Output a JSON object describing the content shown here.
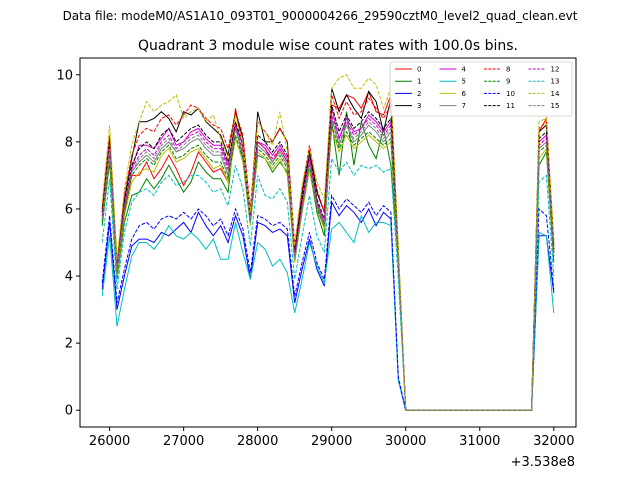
{
  "chart_data": {
    "type": "line",
    "suptitle": "Data file: modeM0/AS1A10_093T01_9000004266_29590cztM0_level2_quad_clean.evt",
    "title": "Quadrant 3 module wise count rates with 100.0s bins.",
    "xlabel": "",
    "ylabel": "",
    "offset_label": "+3.538e8",
    "xlim": [
      25600,
      32300
    ],
    "ylim": [
      -0.5,
      10.5
    ],
    "xticks": [
      26000,
      27000,
      28000,
      29000,
      30000,
      31000,
      32000
    ],
    "xtick_labels": [
      "26000",
      "27000",
      "28000",
      "29000",
      "30000",
      "31000",
      "32000"
    ],
    "yticks": [
      0,
      2,
      4,
      6,
      8,
      10
    ],
    "ytick_labels": [
      "0",
      "2",
      "4",
      "6",
      "8",
      "10"
    ],
    "legend_location": "top-right",
    "x": [
      25900,
      26000,
      26100,
      26200,
      26300,
      26400,
      26500,
      26600,
      26700,
      26800,
      26900,
      27000,
      27100,
      27200,
      27300,
      27400,
      27500,
      27600,
      27700,
      27800,
      27900,
      28000,
      28100,
      28200,
      28300,
      28400,
      28500,
      28600,
      28700,
      28800,
      28900,
      29000,
      29100,
      29200,
      29300,
      29400,
      29500,
      29600,
      29700,
      29800,
      29900,
      30000,
      30100,
      30200,
      30300,
      30400,
      30500,
      30600,
      30700,
      30800,
      30900,
      31000,
      31100,
      31200,
      31300,
      31400,
      31500,
      31600,
      31700,
      31800,
      31900,
      32000
    ],
    "series": [
      {
        "name": "0",
        "color": "#ff0000",
        "dash": "solid",
        "values": [
          5.9,
          7.8,
          4.0,
          5.9,
          7.0,
          7.0,
          7.4,
          6.9,
          7.2,
          7.6,
          7.2,
          6.7,
          7.1,
          7.7,
          7.4,
          7.1,
          7.2,
          6.8,
          9.0,
          7.8,
          5.8,
          8.0,
          7.8,
          7.4,
          7.8,
          7.4,
          4.7,
          6.2,
          7.5,
          6.2,
          5.4,
          9.1,
          9.0,
          9.4,
          9.3,
          9.0,
          9.5,
          8.9,
          8.8,
          9.4,
          4.7,
          0,
          0,
          0,
          0,
          0,
          0,
          0,
          0,
          0,
          0,
          0,
          0,
          0,
          0,
          0,
          0,
          0,
          0,
          8.3,
          8.7,
          4.7
        ]
      },
      {
        "name": "1",
        "color": "#008000",
        "dash": "solid",
        "values": [
          5.5,
          7.4,
          3.9,
          5.6,
          6.4,
          6.5,
          6.9,
          6.6,
          6.9,
          7.3,
          6.9,
          6.5,
          6.8,
          7.4,
          7.1,
          6.9,
          6.9,
          6.5,
          8.5,
          7.5,
          5.6,
          7.6,
          7.5,
          7.1,
          7.4,
          7.1,
          4.5,
          5.9,
          7.2,
          5.9,
          5.2,
          8.6,
          7.0,
          8.9,
          7.3,
          8.6,
          7.9,
          7.5,
          8.4,
          7.3,
          4.4,
          0,
          0,
          0,
          0,
          0,
          0,
          0,
          0,
          0,
          0,
          0,
          0,
          0,
          0,
          0,
          0,
          0,
          0,
          7.3,
          7.7,
          4.4
        ]
      },
      {
        "name": "2",
        "color": "#0000ff",
        "dash": "solid",
        "values": [
          3.6,
          5.6,
          3.0,
          4.0,
          4.9,
          5.1,
          5.1,
          5.0,
          5.3,
          5.2,
          5.4,
          5.6,
          5.3,
          5.9,
          5.5,
          5.2,
          5.5,
          5.0,
          5.8,
          5.2,
          3.9,
          5.6,
          5.5,
          5.3,
          5.4,
          5.2,
          3.2,
          4.2,
          5.1,
          4.2,
          3.7,
          6.2,
          5.8,
          6.1,
          5.9,
          5.6,
          6.0,
          5.5,
          5.9,
          5.7,
          0.9,
          0,
          0,
          0,
          0,
          0,
          0,
          0,
          0,
          0,
          0,
          0,
          0,
          0,
          0,
          0,
          0,
          0,
          0,
          5.2,
          5.2,
          3.5
        ]
      },
      {
        "name": "3",
        "color": "#000000",
        "dash": "solid",
        "values": [
          6.0,
          8.1,
          4.3,
          6.3,
          7.5,
          8.6,
          8.6,
          8.7,
          8.9,
          8.7,
          8.3,
          8.9,
          8.8,
          9.0,
          8.6,
          8.4,
          8.2,
          7.6,
          8.9,
          8.1,
          5.8,
          8.9,
          8.0,
          8.0,
          8.4,
          8.0,
          4.8,
          6.5,
          7.8,
          6.5,
          5.9,
          9.6,
          8.9,
          9.4,
          9.0,
          8.7,
          9.5,
          9.2,
          8.3,
          9.3,
          4.7,
          0,
          0,
          0,
          0,
          0,
          0,
          0,
          0,
          0,
          0,
          0,
          0,
          0,
          0,
          0,
          0,
          0,
          0,
          8.3,
          8.5,
          4.9
        ]
      },
      {
        "name": "4",
        "color": "#cc00cc",
        "dash": "solid",
        "values": [
          5.7,
          7.8,
          4.1,
          6.0,
          7.2,
          7.9,
          7.9,
          7.8,
          8.1,
          8.4,
          7.9,
          8.0,
          8.3,
          8.4,
          8.1,
          7.9,
          7.9,
          7.3,
          8.5,
          7.9,
          5.7,
          8.0,
          7.9,
          7.6,
          7.9,
          7.5,
          4.6,
          6.2,
          7.6,
          6.2,
          5.6,
          9.0,
          8.1,
          8.7,
          8.3,
          8.4,
          8.8,
          8.6,
          8.3,
          8.6,
          4.6,
          0,
          0,
          0,
          0,
          0,
          0,
          0,
          0,
          0,
          0,
          0,
          0,
          0,
          0,
          0,
          0,
          0,
          0,
          8.0,
          8.2,
          4.8
        ]
      },
      {
        "name": "5",
        "color": "#00bfbf",
        "dash": "solid",
        "values": [
          3.4,
          5.2,
          2.5,
          3.6,
          4.6,
          5.0,
          5.0,
          4.8,
          5.1,
          5.5,
          5.2,
          5.1,
          5.3,
          5.1,
          4.8,
          5.1,
          4.5,
          4.5,
          5.6,
          4.7,
          3.9,
          5.0,
          4.8,
          4.3,
          4.5,
          4.1,
          2.9,
          3.9,
          5.0,
          4.3,
          3.8,
          5.4,
          5.6,
          5.3,
          5.0,
          5.8,
          5.3,
          5.6,
          5.6,
          5.5,
          0.9,
          0,
          0,
          0,
          0,
          0,
          0,
          0,
          0,
          0,
          0,
          0,
          0,
          0,
          0,
          0,
          0,
          0,
          0,
          5.3,
          5.2,
          2.9
        ]
      },
      {
        "name": "6",
        "color": "#bfbf00",
        "dash": "solid",
        "values": [
          5.6,
          7.6,
          4.0,
          5.8,
          6.8,
          7.1,
          7.2,
          7.1,
          7.6,
          7.8,
          7.4,
          7.5,
          7.7,
          7.8,
          7.5,
          7.2,
          7.3,
          6.8,
          8.1,
          7.4,
          5.5,
          7.7,
          7.5,
          7.2,
          7.5,
          7.0,
          4.4,
          5.9,
          7.2,
          6.0,
          5.4,
          8.4,
          7.7,
          8.2,
          7.8,
          8.0,
          8.2,
          8.0,
          7.8,
          8.0,
          4.3,
          0,
          0,
          0,
          0,
          0,
          0,
          0,
          0,
          0,
          0,
          0,
          0,
          0,
          0,
          0,
          0,
          0,
          0,
          7.5,
          7.8,
          4.6
        ]
      },
      {
        "name": "7",
        "color": "#808080",
        "dash": "solid",
        "values": [
          5.8,
          7.9,
          4.2,
          6.1,
          7.1,
          7.4,
          7.6,
          7.4,
          7.8,
          8.0,
          7.7,
          7.8,
          8.0,
          8.1,
          7.8,
          7.6,
          7.6,
          7.0,
          8.4,
          7.6,
          5.6,
          7.9,
          7.7,
          7.4,
          7.7,
          7.3,
          4.5,
          6.0,
          7.4,
          6.1,
          5.5,
          8.7,
          7.9,
          8.5,
          8.0,
          8.2,
          8.5,
          8.3,
          8.0,
          8.3,
          4.5,
          0,
          0,
          0,
          0,
          0,
          0,
          0,
          0,
          0,
          0,
          0,
          0,
          0,
          0,
          0,
          0,
          0,
          0,
          7.8,
          8.0,
          4.7
        ]
      },
      {
        "name": "8",
        "color": "#ff0000",
        "dash": "dashed",
        "values": [
          6.0,
          8.2,
          4.4,
          6.4,
          7.6,
          8.2,
          8.4,
          8.3,
          8.7,
          8.8,
          8.5,
          8.8,
          9.1,
          9.0,
          8.7,
          8.5,
          8.4,
          7.8,
          8.9,
          8.2,
          6.0,
          8.6,
          8.3,
          8.0,
          8.4,
          8.0,
          4.9,
          6.6,
          7.9,
          6.6,
          5.9,
          9.4,
          8.7,
          9.2,
          8.8,
          8.9,
          9.3,
          9.0,
          8.7,
          9.1,
          4.8,
          0,
          0,
          0,
          0,
          0,
          0,
          0,
          0,
          0,
          0,
          0,
          0,
          0,
          0,
          0,
          0,
          0,
          0,
          8.4,
          8.6,
          5.0
        ]
      },
      {
        "name": "9",
        "color": "#008000",
        "dash": "dashed",
        "values": [
          5.6,
          7.7,
          4.1,
          5.9,
          7.0,
          7.3,
          7.5,
          7.3,
          7.7,
          7.9,
          7.5,
          7.6,
          7.8,
          7.9,
          7.6,
          7.4,
          7.4,
          6.9,
          8.2,
          7.5,
          5.6,
          7.8,
          7.6,
          7.3,
          7.6,
          7.2,
          4.5,
          6.0,
          7.3,
          6.0,
          5.5,
          8.5,
          7.8,
          8.3,
          7.9,
          8.1,
          8.3,
          8.1,
          7.9,
          8.1,
          4.4,
          0,
          0,
          0,
          0,
          0,
          0,
          0,
          0,
          0,
          0,
          0,
          0,
          0,
          0,
          0,
          0,
          0,
          0,
          7.7,
          7.9,
          4.6
        ]
      },
      {
        "name": "10",
        "color": "#0000ff",
        "dash": "dashed",
        "values": [
          3.8,
          5.8,
          3.2,
          4.2,
          5.1,
          5.5,
          5.6,
          5.4,
          5.7,
          5.8,
          5.7,
          5.9,
          5.7,
          6.0,
          5.8,
          5.5,
          5.7,
          5.2,
          6.0,
          5.4,
          4.1,
          5.8,
          5.7,
          5.5,
          5.6,
          5.4,
          3.4,
          4.4,
          5.3,
          4.4,
          3.9,
          6.4,
          6.0,
          6.3,
          6.1,
          5.9,
          6.2,
          5.8,
          6.1,
          5.9,
          1.0,
          0,
          0,
          0,
          0,
          0,
          0,
          0,
          0,
          0,
          0,
          0,
          0,
          0,
          0,
          0,
          0,
          0,
          0,
          6.0,
          5.8,
          3.6
        ]
      },
      {
        "name": "11",
        "color": "#000000",
        "dash": "dashed",
        "values": [
          5.9,
          8.0,
          4.3,
          6.2,
          7.3,
          7.8,
          8.0,
          7.8,
          8.2,
          8.4,
          8.0,
          8.2,
          8.4,
          8.5,
          8.2,
          8.0,
          8.0,
          7.4,
          8.6,
          7.9,
          5.8,
          8.2,
          8.0,
          7.7,
          8.0,
          7.6,
          4.7,
          6.3,
          7.7,
          6.3,
          5.7,
          9.1,
          8.3,
          8.8,
          8.4,
          8.6,
          8.9,
          8.7,
          8.4,
          8.7,
          4.6,
          0,
          0,
          0,
          0,
          0,
          0,
          0,
          0,
          0,
          0,
          0,
          0,
          0,
          0,
          0,
          0,
          0,
          0,
          8.1,
          8.3,
          4.8
        ]
      },
      {
        "name": "12",
        "color": "#cc00cc",
        "dash": "dashed",
        "values": [
          5.8,
          7.9,
          4.2,
          6.1,
          7.2,
          7.6,
          7.8,
          7.6,
          8.0,
          8.2,
          7.8,
          8.0,
          8.2,
          8.3,
          8.0,
          7.8,
          7.8,
          7.2,
          8.5,
          7.7,
          5.7,
          8.0,
          7.8,
          7.5,
          7.8,
          7.4,
          4.6,
          6.1,
          7.5,
          6.2,
          5.6,
          8.8,
          8.1,
          8.6,
          8.2,
          8.4,
          8.7,
          8.5,
          8.2,
          8.5,
          4.5,
          0,
          0,
          0,
          0,
          0,
          0,
          0,
          0,
          0,
          0,
          0,
          0,
          0,
          0,
          0,
          0,
          0,
          0,
          7.9,
          8.1,
          4.7
        ]
      },
      {
        "name": "13",
        "color": "#00bfbf",
        "dash": "dashed",
        "values": [
          5.0,
          6.9,
          3.6,
          5.3,
          6.2,
          6.5,
          6.6,
          6.4,
          6.8,
          7.0,
          6.7,
          6.8,
          7.0,
          7.0,
          6.8,
          6.5,
          6.6,
          6.1,
          7.3,
          6.6,
          4.9,
          7.0,
          6.4,
          6.3,
          6.6,
          6.2,
          3.9,
          5.2,
          6.4,
          5.2,
          4.7,
          7.5,
          7.1,
          7.4,
          7.0,
          7.3,
          7.2,
          7.3,
          7.1,
          7.2,
          3.9,
          0,
          0,
          0,
          0,
          0,
          0,
          0,
          0,
          0,
          0,
          0,
          0,
          0,
          0,
          0,
          0,
          0,
          0,
          6.8,
          7.0,
          4.0
        ]
      },
      {
        "name": "14",
        "color": "#bfbf00",
        "dash": "dashed",
        "values": [
          6.2,
          8.5,
          4.5,
          6.6,
          7.9,
          8.6,
          9.2,
          8.9,
          9.1,
          9.2,
          9.4,
          8.7,
          8.9,
          9.0,
          8.6,
          8.8,
          8.1,
          7.5,
          8.8,
          7.9,
          5.9,
          8.6,
          8.3,
          7.9,
          8.9,
          7.7,
          4.9,
          6.7,
          7.8,
          6.8,
          6.3,
          9.6,
          9.9,
          10.0,
          9.6,
          9.6,
          9.9,
          9.7,
          9.0,
          9.6,
          4.9,
          0,
          0,
          0,
          0,
          0,
          0,
          0,
          0,
          0,
          0,
          0,
          0,
          0,
          0,
          0,
          0,
          0,
          0,
          8.6,
          8.7,
          5.1
        ]
      },
      {
        "name": "15",
        "color": "#808080",
        "dash": "dashed",
        "values": [
          5.7,
          7.8,
          4.2,
          6.0,
          7.1,
          7.5,
          7.7,
          7.5,
          7.9,
          8.1,
          7.7,
          7.9,
          8.1,
          8.2,
          7.9,
          7.7,
          7.7,
          7.1,
          8.4,
          7.6,
          5.6,
          7.9,
          7.7,
          7.4,
          7.7,
          7.3,
          4.5,
          6.0,
          7.4,
          6.1,
          5.5,
          8.7,
          8.0,
          8.5,
          8.1,
          8.3,
          8.6,
          8.4,
          8.1,
          8.4,
          4.5,
          0,
          0,
          0,
          0,
          0,
          0,
          0,
          0,
          0,
          0,
          0,
          0,
          0,
          0,
          0,
          0,
          0,
          0,
          7.8,
          8.0,
          4.7
        ]
      }
    ]
  }
}
